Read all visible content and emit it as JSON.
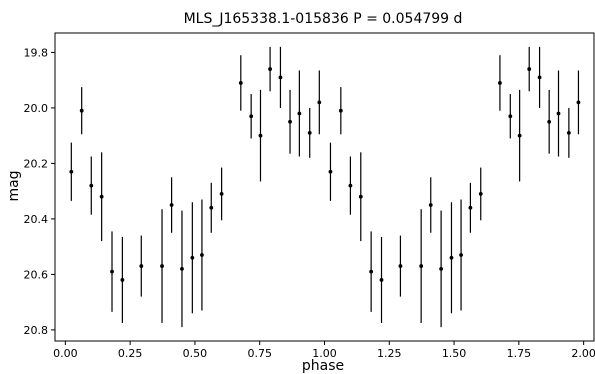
{
  "chart_data": {
    "type": "scatter",
    "title": "MLS_J165338.1-015836   P = 0.054799 d",
    "xlabel": "phase",
    "ylabel": "mag",
    "xlim": [
      -0.04,
      2.04
    ],
    "ylim": [
      20.84,
      19.73
    ],
    "y_inverted": true,
    "x_ticks": [
      0.0,
      0.25,
      0.5,
      0.75,
      1.0,
      1.25,
      1.5,
      1.75,
      2.0
    ],
    "x_tick_labels": [
      "0.00",
      "0.25",
      "0.50",
      "0.75",
      "1.00",
      "1.25",
      "1.50",
      "1.75",
      "2.00"
    ],
    "y_ticks": [
      19.8,
      20.0,
      20.2,
      20.4,
      20.6,
      20.8
    ],
    "y_tick_labels": [
      "19.8",
      "20.0",
      "20.2",
      "20.4",
      "20.6",
      "20.8"
    ],
    "grid": false,
    "marker_color": "#000000",
    "points": [
      {
        "x": 0.023,
        "y": 20.23,
        "err": 0.105
      },
      {
        "x": 0.063,
        "y": 20.01,
        "err": 0.085
      },
      {
        "x": 0.1,
        "y": 20.28,
        "err": 0.105
      },
      {
        "x": 0.14,
        "y": 20.32,
        "err": 0.16
      },
      {
        "x": 0.18,
        "y": 20.59,
        "err": 0.145
      },
      {
        "x": 0.22,
        "y": 20.62,
        "err": 0.155
      },
      {
        "x": 0.293,
        "y": 20.57,
        "err": 0.11
      },
      {
        "x": 0.373,
        "y": 20.57,
        "err": 0.205
      },
      {
        "x": 0.41,
        "y": 20.35,
        "err": 0.1
      },
      {
        "x": 0.45,
        "y": 20.58,
        "err": 0.21
      },
      {
        "x": 0.49,
        "y": 20.54,
        "err": 0.2
      },
      {
        "x": 0.527,
        "y": 20.53,
        "err": 0.2
      },
      {
        "x": 0.563,
        "y": 20.36,
        "err": 0.09
      },
      {
        "x": 0.603,
        "y": 20.31,
        "err": 0.095
      },
      {
        "x": 0.677,
        "y": 19.91,
        "err": 0.1
      },
      {
        "x": 0.717,
        "y": 20.03,
        "err": 0.08
      },
      {
        "x": 0.753,
        "y": 20.1,
        "err": 0.165
      },
      {
        "x": 0.79,
        "y": 19.86,
        "err": 0.08
      },
      {
        "x": 0.83,
        "y": 19.89,
        "err": 0.11
      },
      {
        "x": 0.867,
        "y": 20.05,
        "err": 0.115
      },
      {
        "x": 0.903,
        "y": 20.02,
        "err": 0.155
      },
      {
        "x": 0.943,
        "y": 20.09,
        "err": 0.09
      },
      {
        "x": 0.98,
        "y": 19.98,
        "err": 0.115
      }
    ]
  }
}
